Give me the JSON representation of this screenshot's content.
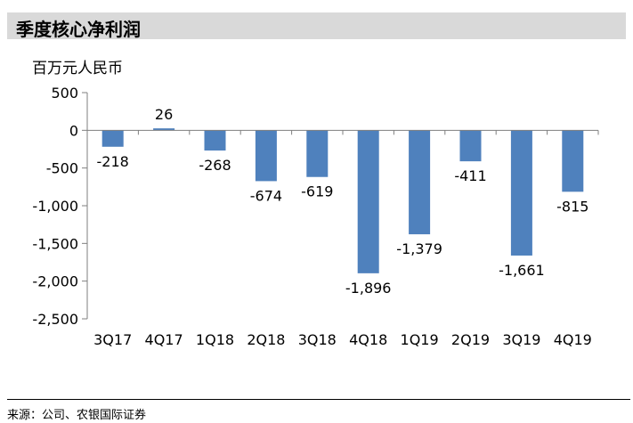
{
  "title": "季度核心净利润",
  "source": "来源：公司、农银国际证券",
  "chart_data": {
    "type": "bar",
    "unit_label": "百万元人民币",
    "categories": [
      "3Q17",
      "4Q17",
      "1Q18",
      "2Q18",
      "3Q18",
      "4Q18",
      "1Q19",
      "2Q19",
      "3Q19",
      "4Q19"
    ],
    "values": [
      -218,
      26,
      -268,
      -674,
      -619,
      -1896,
      -1379,
      -411,
      -1661,
      -815
    ],
    "value_labels": [
      "-218",
      "26",
      "-268",
      "-674",
      "-619",
      "-1,896",
      "-1,379",
      "-411",
      "-1,661",
      "-815"
    ],
    "ylim": [
      -2500,
      500
    ],
    "yticks": [
      500,
      0,
      -500,
      -1000,
      -1500,
      -2000,
      -2500
    ],
    "ytick_labels": [
      "500",
      "0",
      "-500",
      "-1,000",
      "-1,500",
      "-2,000",
      "-2,500"
    ],
    "bar_color": "#4f81bd",
    "grid": false,
    "legend": "none"
  }
}
